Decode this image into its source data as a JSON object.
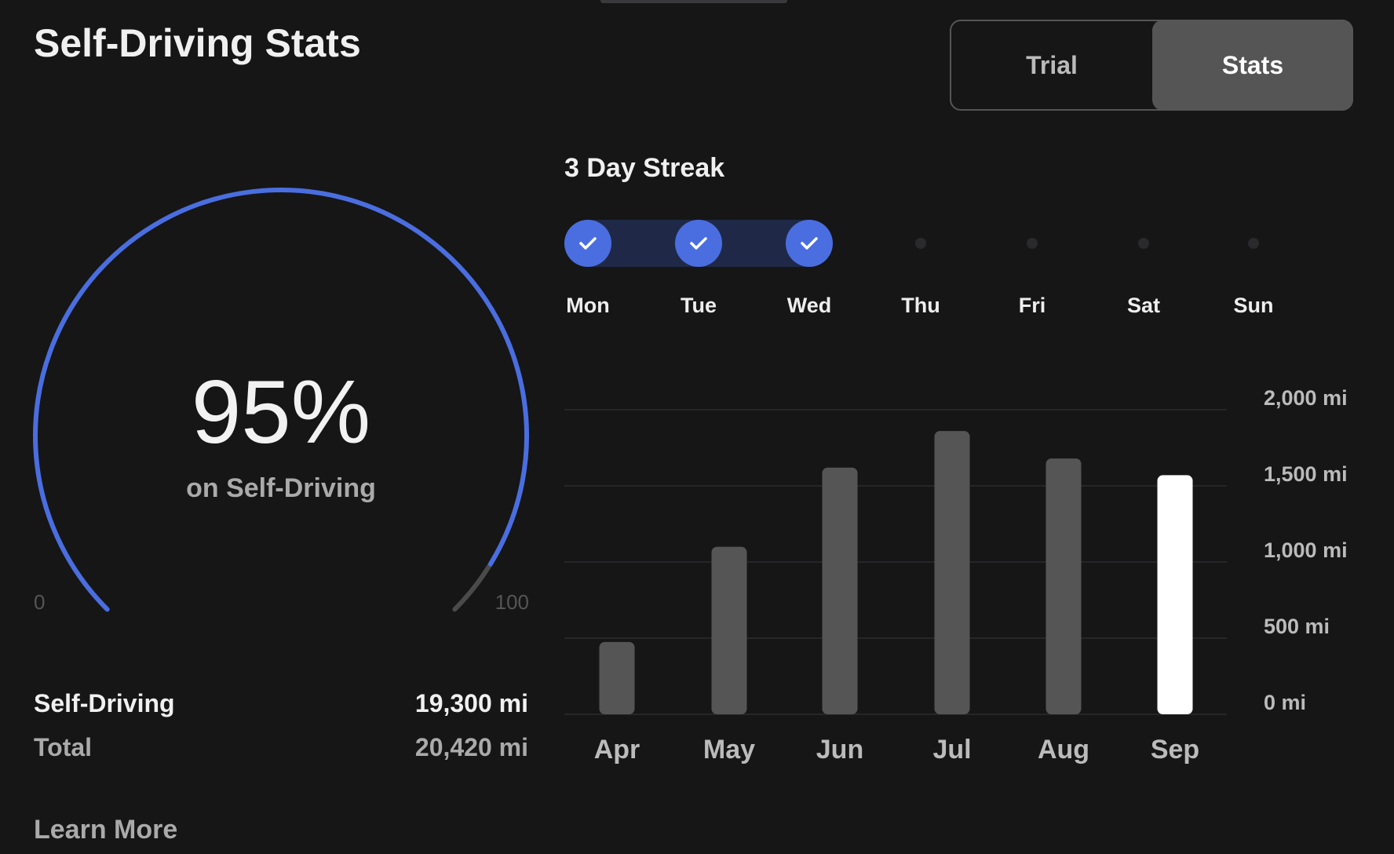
{
  "title": "Self-Driving Stats",
  "toggle": {
    "options": [
      "Trial",
      "Stats"
    ],
    "selected": "Stats"
  },
  "gauge": {
    "value_label": "95%",
    "value": 95,
    "subtitle": "on Self-Driving",
    "min_label": "0",
    "max_label": "100",
    "color": "#4a6ee0",
    "track_color": "#4a4a4a"
  },
  "summary": [
    {
      "label": "Self-Driving",
      "value": "19,300 mi"
    },
    {
      "label": "Total",
      "value": "20,420 mi"
    }
  ],
  "learn_more": "Learn More",
  "streak": {
    "title": "3 Day Streak",
    "days": [
      {
        "label": "Mon",
        "done": true
      },
      {
        "label": "Tue",
        "done": true
      },
      {
        "label": "Wed",
        "done": true
      },
      {
        "label": "Thu",
        "done": false
      },
      {
        "label": "Fri",
        "done": false
      },
      {
        "label": "Sat",
        "done": false
      },
      {
        "label": "Sun",
        "done": false
      }
    ],
    "icon": "checkmark-icon"
  },
  "chart_data": {
    "type": "bar",
    "categories": [
      "Apr",
      "May",
      "Jun",
      "Jul",
      "Aug",
      "Sep"
    ],
    "values": [
      475,
      1100,
      1620,
      1860,
      1680,
      1570
    ],
    "unit": "mi",
    "ylim": [
      0,
      2000
    ],
    "yticks": [
      "0 mi",
      "500 mi",
      "1,000 mi",
      "1,500 mi",
      "2,000 mi"
    ],
    "ytick_values": [
      0,
      500,
      1000,
      1500,
      2000
    ],
    "grid": true,
    "highlight": "Sep",
    "bar_color": "#555555",
    "highlight_color": "#ffffff"
  }
}
